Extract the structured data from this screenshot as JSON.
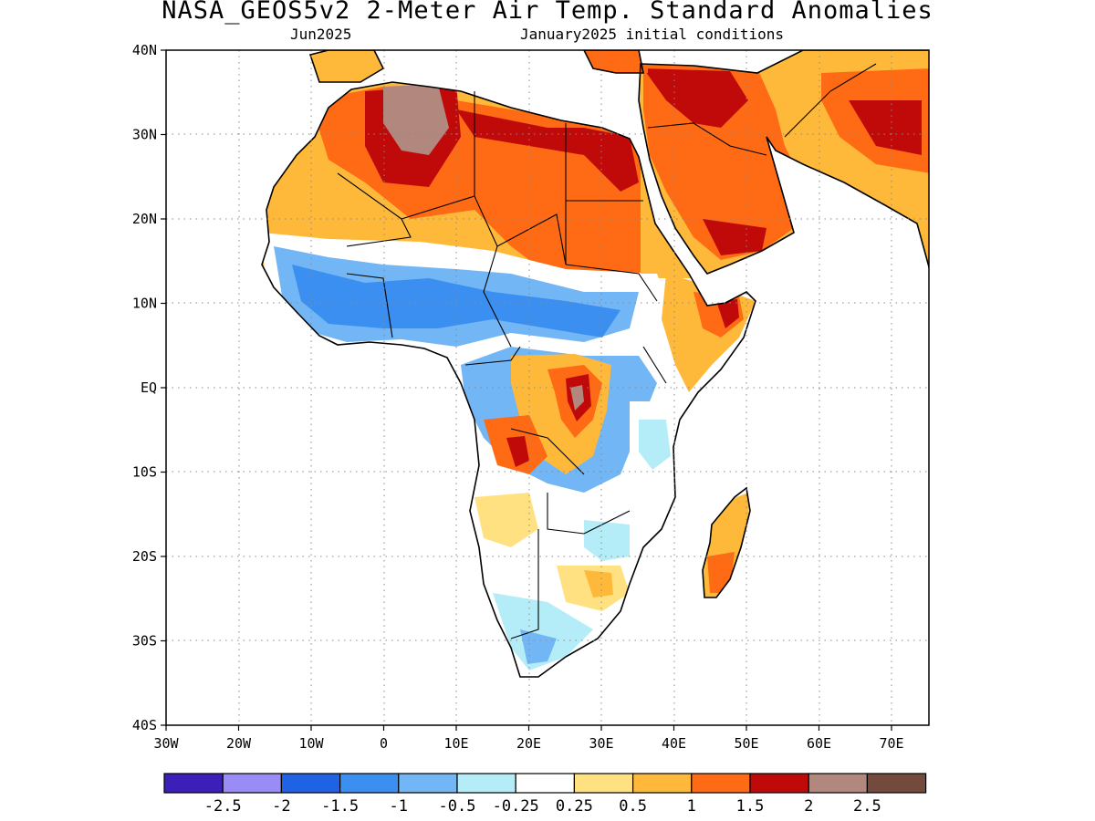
{
  "header": {
    "title": "NASA_GEOS5v2 2-Meter Air Temp. Standard Anomalies",
    "month": "Jun2025",
    "init": "January2025 initial conditions"
  },
  "axes": {
    "lat_labels": [
      "40N",
      "30N",
      "20N",
      "10N",
      "EQ",
      "10S",
      "20S",
      "30S",
      "40S"
    ],
    "lon_labels": [
      "30W",
      "20W",
      "10W",
      "0",
      "10E",
      "20E",
      "30E",
      "40E",
      "50E",
      "60E",
      "70E"
    ],
    "lat_range": [
      -40,
      40
    ],
    "lon_range": [
      -30,
      75
    ],
    "grid": "dotted"
  },
  "colorbar": {
    "colors": [
      "#3c1fb8",
      "#9a8cf6",
      "#1f62e6",
      "#3b8ff0",
      "#73b6f5",
      "#b4ecf7",
      "#ffffff",
      "#ffe182",
      "#ffb93a",
      "#ff6a14",
      "#c00a0a",
      "#b2877d",
      "#734a3c"
    ],
    "labels": [
      "-2.5",
      "-2",
      "-1.5",
      "-1",
      "-0.5",
      "-0.25",
      "0.25",
      "0.5",
      "1",
      "1.5",
      "2",
      "2.5"
    ]
  },
  "legend_colors": {
    "sea": "#ffffff",
    "coast": "#000000",
    "strong_warm": "#c00a0a",
    "warm": "#ff6a14",
    "mild_warm": "#ffb93a",
    "slight_warm": "#ffe182",
    "slight_cool": "#b4ecf7",
    "mild_cool": "#73b6f5",
    "cool": "#3b8ff0",
    "extreme_warm": "#b2877d"
  }
}
